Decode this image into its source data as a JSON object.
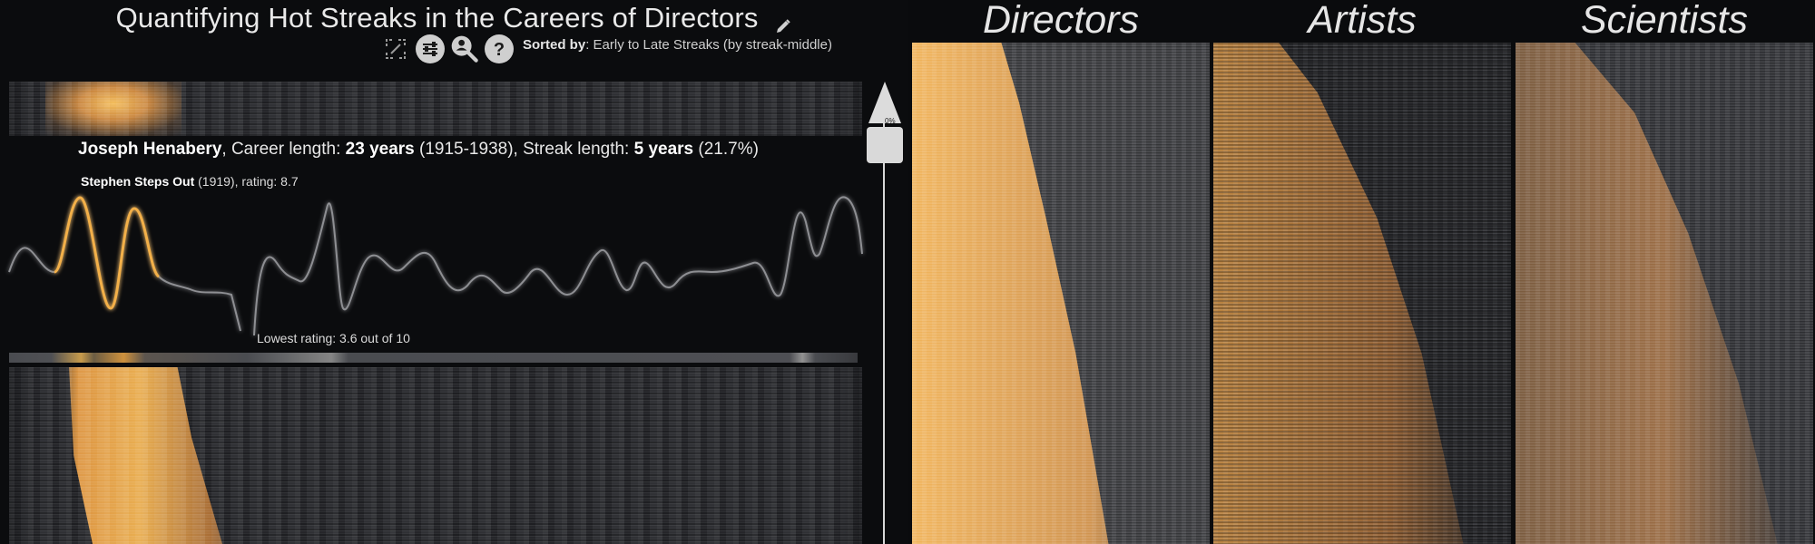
{
  "header": {
    "title": "Quantifying Hot Streaks in the Careers of Directors",
    "sorted_by_label": "Sorted by",
    "sorted_by_value": ": Early to Late Streaks (by streak-middle)"
  },
  "selected_person": {
    "name": "Joseph Henabery",
    "career_prefix": ", Career length: ",
    "career_length": "23 years",
    "career_range": " (1915-1938)",
    "streak_prefix": ", Streak length: ",
    "streak_length": "5 years",
    "streak_pct": " (21.7%)",
    "top_film": "Stephen Steps Out",
    "top_film_meta": " (1919), rating: 8.7",
    "lowest_rating_label": "Lowest rating: 3.6 out of 10"
  },
  "scrollbar": {
    "position": "0%"
  },
  "gallery": [
    {
      "label": "Directors"
    },
    {
      "label": "Artists"
    },
    {
      "label": "Scientists"
    }
  ],
  "icons": [
    "expand-icon",
    "sliders-icon",
    "search-user-icon",
    "help-icon",
    "pencil-icon"
  ],
  "colors": {
    "streak": "#f2a93b",
    "background": "#0b0c0e",
    "heatmap_base": "#3a3b3f"
  }
}
